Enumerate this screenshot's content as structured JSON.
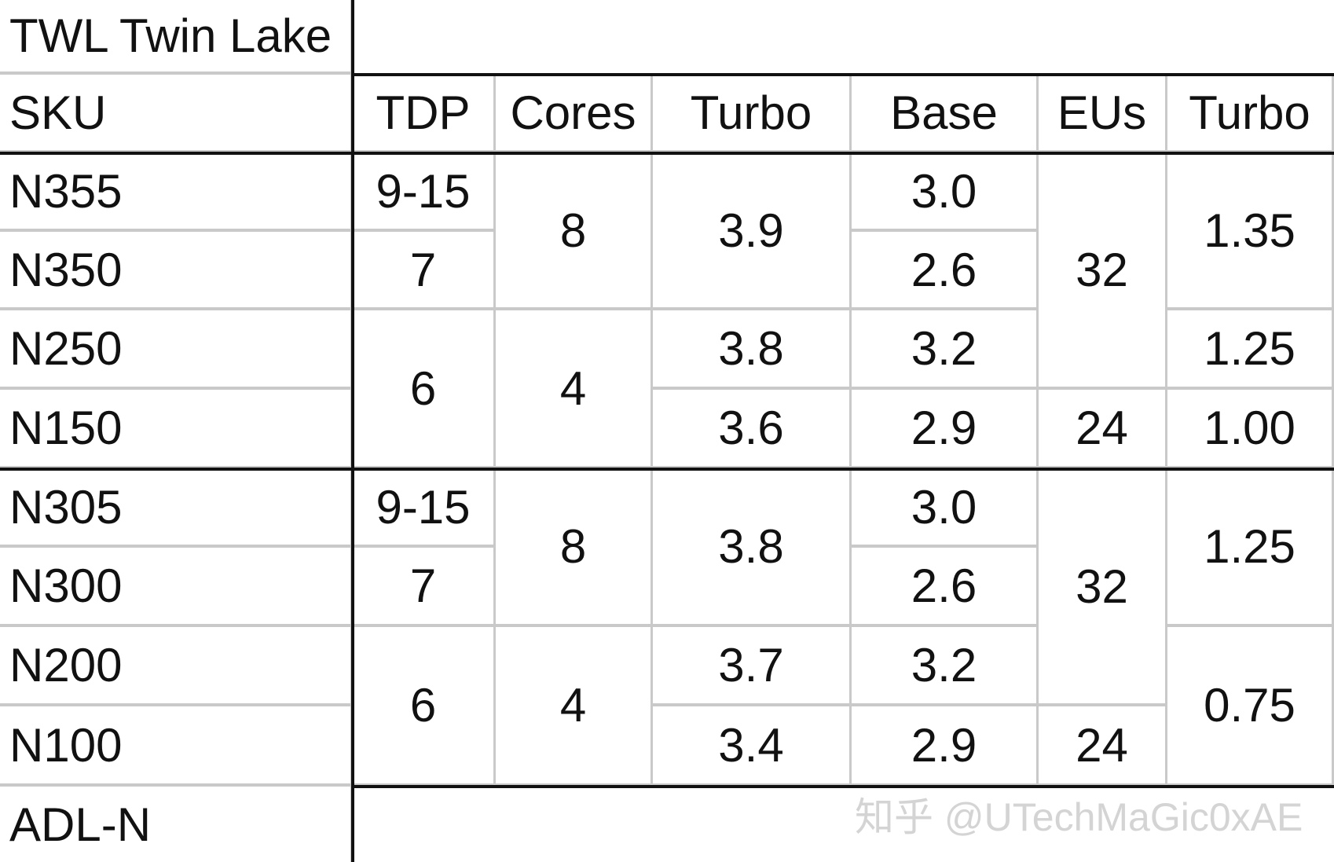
{
  "title": "TWL Twin Lake",
  "footer_label": "ADL-N",
  "watermark": "知乎 @UTechMaGic0xAE",
  "headers": [
    "SKU",
    "TDP",
    "Cores",
    "Turbo",
    "Base",
    "EUs",
    "Turbo"
  ],
  "skus": [
    "N355",
    "N350",
    "N250",
    "N150",
    "N305",
    "N300",
    "N200",
    "N100"
  ],
  "columns": [
    {
      "name": "tdp",
      "cells": [
        {
          "v": "9-15",
          "rows": [
            0,
            0
          ]
        },
        {
          "v": "7",
          "rows": [
            1,
            1
          ]
        },
        {
          "v": "6",
          "rows": [
            2,
            3
          ]
        },
        {
          "v": "9-15",
          "rows": [
            4,
            4
          ]
        },
        {
          "v": "7",
          "rows": [
            5,
            5
          ]
        },
        {
          "v": "6",
          "rows": [
            6,
            7
          ]
        }
      ]
    },
    {
      "name": "cores",
      "cells": [
        {
          "v": "8",
          "rows": [
            0,
            1
          ]
        },
        {
          "v": "4",
          "rows": [
            2,
            3
          ]
        },
        {
          "v": "8",
          "rows": [
            4,
            5
          ]
        },
        {
          "v": "4",
          "rows": [
            6,
            7
          ]
        }
      ]
    },
    {
      "name": "cpu-turbo",
      "cells": [
        {
          "v": "3.9",
          "rows": [
            0,
            1
          ]
        },
        {
          "v": "3.8",
          "rows": [
            2,
            2
          ]
        },
        {
          "v": "3.6",
          "rows": [
            3,
            3
          ]
        },
        {
          "v": "3.8",
          "rows": [
            4,
            5
          ]
        },
        {
          "v": "3.7",
          "rows": [
            6,
            6
          ]
        },
        {
          "v": "3.4",
          "rows": [
            7,
            7
          ]
        }
      ]
    },
    {
      "name": "base",
      "cells": [
        {
          "v": "3.0",
          "rows": [
            0,
            0
          ]
        },
        {
          "v": "2.6",
          "rows": [
            1,
            1
          ]
        },
        {
          "v": "3.2",
          "rows": [
            2,
            2
          ]
        },
        {
          "v": "2.9",
          "rows": [
            3,
            3
          ]
        },
        {
          "v": "3.0",
          "rows": [
            4,
            4
          ]
        },
        {
          "v": "2.6",
          "rows": [
            5,
            5
          ]
        },
        {
          "v": "3.2",
          "rows": [
            6,
            6
          ]
        },
        {
          "v": "2.9",
          "rows": [
            7,
            7
          ]
        }
      ]
    },
    {
      "name": "eus",
      "cells": [
        {
          "v": "32",
          "rows": [
            0,
            2
          ]
        },
        {
          "v": "24",
          "rows": [
            3,
            3
          ]
        },
        {
          "v": "32",
          "rows": [
            4,
            6
          ]
        },
        {
          "v": "24",
          "rows": [
            7,
            7
          ]
        }
      ]
    },
    {
      "name": "gpu-turbo",
      "cells": [
        {
          "v": "1.35",
          "rows": [
            0,
            1
          ]
        },
        {
          "v": "1.25",
          "rows": [
            2,
            2
          ]
        },
        {
          "v": "1.00",
          "rows": [
            3,
            3
          ]
        },
        {
          "v": "1.25",
          "rows": [
            4,
            5
          ]
        },
        {
          "v": "0.75",
          "rows": [
            6,
            7
          ]
        }
      ]
    }
  ]
}
